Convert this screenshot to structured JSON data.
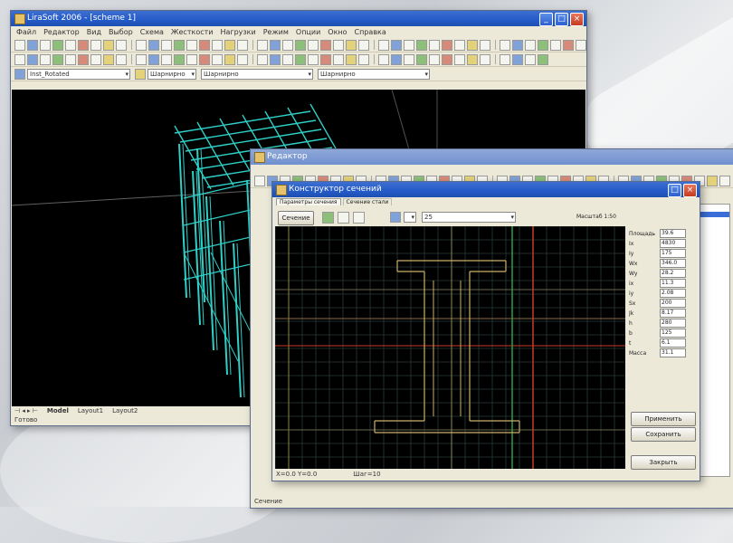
{
  "background": {
    "colors": {
      "page": "#d0d3d7"
    }
  },
  "main_window": {
    "title": "LiraSoft 2006 - [scheme 1]",
    "menu": [
      "Файл",
      "Редактор",
      "Вид",
      "Выбор",
      "Схема",
      "Жесткости",
      "Нагрузки",
      "Режим",
      "Опции",
      "Окно",
      "Справка"
    ],
    "combos": [
      "Inst_Rotated",
      "Шарнирно",
      "Шарнирно",
      "Шарнирно"
    ],
    "status_tabs": [
      "Model",
      "Layout1",
      "Layout2"
    ],
    "status_text": "Готово",
    "colors": {
      "viewport": "#000000",
      "structure": "#2fd0c8",
      "titlebar": "#245bc8"
    }
  },
  "mid_window": {
    "title": "Редактор",
    "colors": {
      "highlight": "#3a6ed8"
    }
  },
  "dialog": {
    "title": "Конструктор сечений",
    "tabs": [
      "Параметры сечения",
      "Сечение стали"
    ],
    "sections_button": "Сечение",
    "section_combo": "25",
    "scale_label": "Масштаб 1:50",
    "properties": [
      {
        "label": "Площадь",
        "value": "39.6"
      },
      {
        "label": "Ix",
        "value": "4830"
      },
      {
        "label": "Iy",
        "value": "175"
      },
      {
        "label": "Wx",
        "value": "346.0"
      },
      {
        "label": "Wy",
        "value": "28.2"
      },
      {
        "label": "ix",
        "value": "11.3"
      },
      {
        "label": "iy",
        "value": "2.08"
      },
      {
        "label": "Sx",
        "value": "200"
      },
      {
        "label": "Jk",
        "value": "8.17"
      },
      {
        "label": "h",
        "value": "280"
      },
      {
        "label": "b",
        "value": "125"
      },
      {
        "label": "t",
        "value": "6.1"
      },
      {
        "label": "Масса",
        "value": "31.1"
      }
    ],
    "buttons": {
      "apply": "Применить",
      "save": "Сохранить",
      "close": "Закрыть"
    },
    "status_left": "X=0.0 Y=0.0",
    "status_right": "Шаг=10",
    "colors": {
      "canvas": "#000000",
      "grid": "#2a3a3a",
      "section": "#c9b06a",
      "axis_red": "#c83a2a",
      "axis_green": "#2aa04a"
    }
  },
  "taskbar_text": "Сечение"
}
